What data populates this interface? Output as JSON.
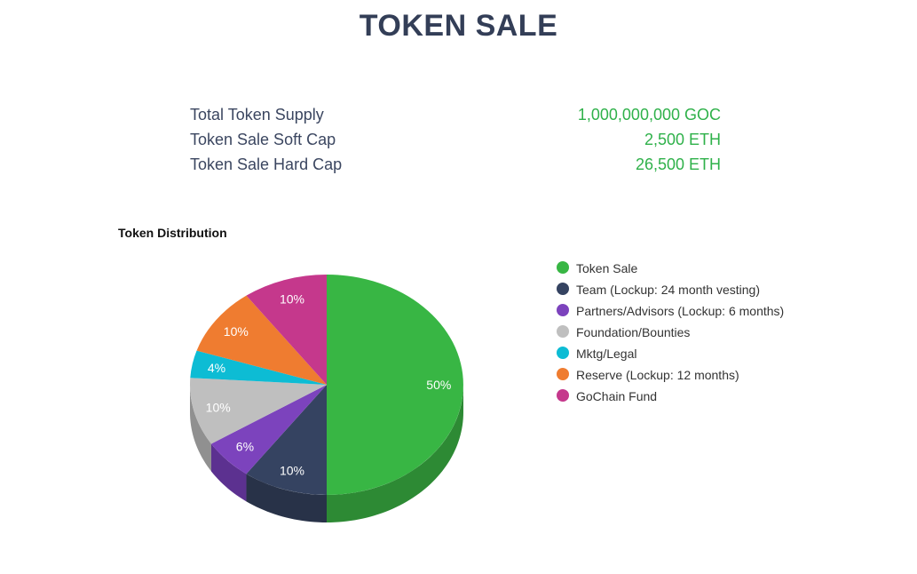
{
  "page": {
    "title": "TOKEN SALE"
  },
  "stats": [
    {
      "label": "Total Token Supply",
      "value": "1,000,000,000 GOC"
    },
    {
      "label": "Token Sale Soft Cap",
      "value": "2,500 ETH"
    },
    {
      "label": "Token Sale Hard Cap",
      "value": "26,500 ETH"
    }
  ],
  "chart_data": {
    "type": "pie",
    "title": "Token Distribution",
    "legend_position": "right",
    "slices": [
      {
        "label": "Token Sale",
        "value": 50,
        "display": "50%",
        "color": "#38b644",
        "side_color": "#2d8a34"
      },
      {
        "label": "Team (Lockup: 24 month vesting)",
        "value": 10,
        "display": "10%",
        "color": "#354361",
        "side_color": "#283248"
      },
      {
        "label": "Partners/Advisors (Lockup: 6 months)",
        "value": 6,
        "display": "6%",
        "color": "#7c43bd",
        "side_color": "#5c3190"
      },
      {
        "label": "Foundation/Bounties",
        "value": 10,
        "display": "10%",
        "color": "#bfbfbf",
        "side_color": "#909090"
      },
      {
        "label": "Mktg/Legal",
        "value": 4,
        "display": "4%",
        "color": "#0dbcd4",
        "side_color": "#0a8ea0"
      },
      {
        "label": "Reserve (Lockup: 12 months)",
        "value": 10,
        "display": "10%",
        "color": "#ef7c30",
        "side_color": "#b55e24"
      },
      {
        "label": "GoChain Fund",
        "value": 10,
        "display": "10%",
        "color": "#c5388c",
        "side_color": "#952a6a"
      }
    ]
  }
}
